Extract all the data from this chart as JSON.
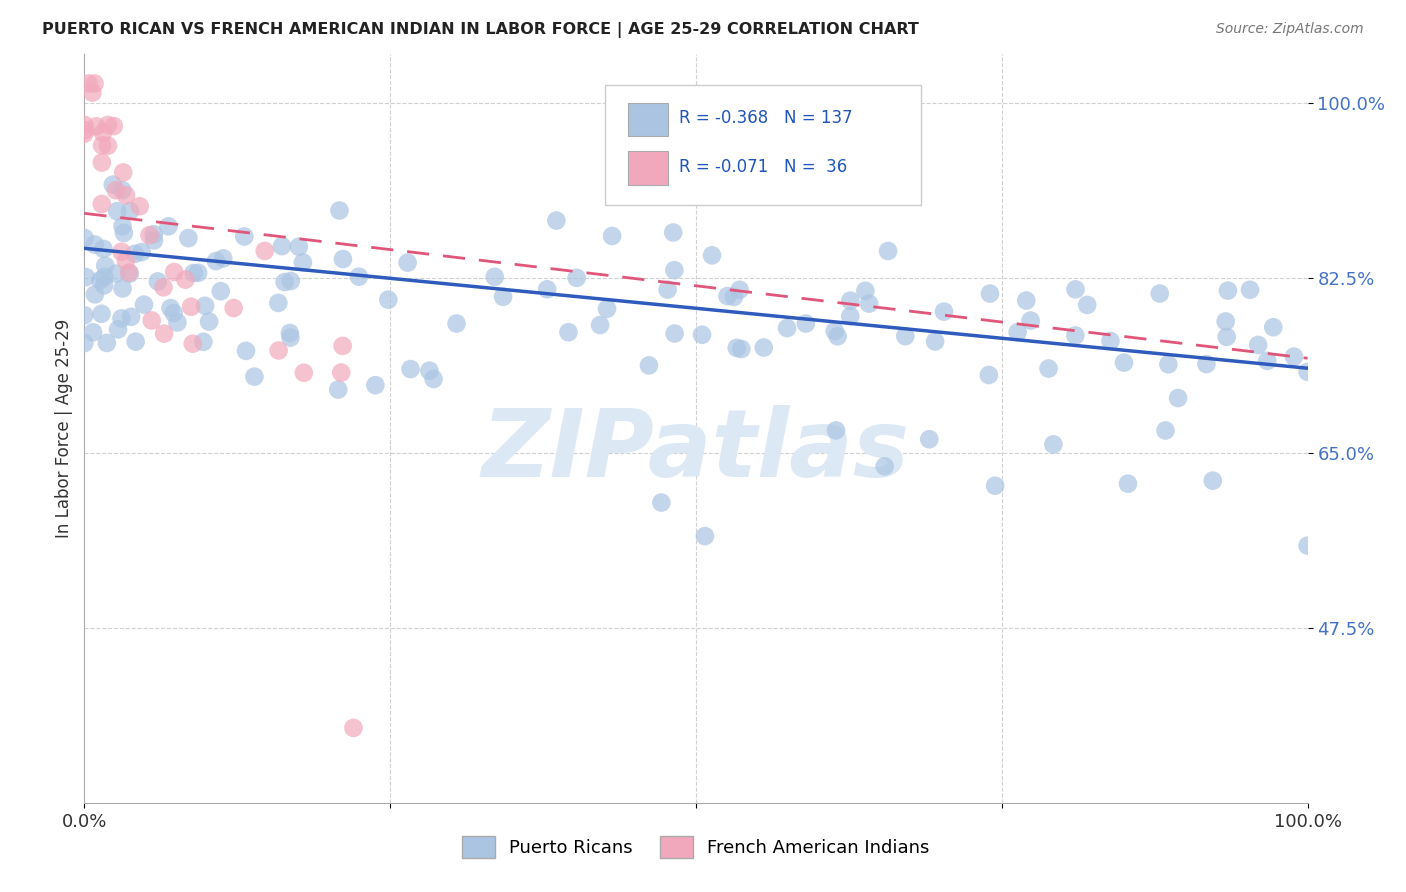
{
  "title": "PUERTO RICAN VS FRENCH AMERICAN INDIAN IN LABOR FORCE | AGE 25-29 CORRELATION CHART",
  "source_text": "Source: ZipAtlas.com",
  "ylabel": "In Labor Force | Age 25-29",
  "xlim": [
    0.0,
    1.0
  ],
  "ylim": [
    0.3,
    1.05
  ],
  "yticks": [
    0.475,
    0.65,
    0.825,
    1.0
  ],
  "ytick_labels": [
    "47.5%",
    "65.0%",
    "82.5%",
    "100.0%"
  ],
  "xticks": [
    0.0,
    0.25,
    0.5,
    0.75,
    1.0
  ],
  "xtick_labels": [
    "0.0%",
    "",
    "",
    "",
    "100.0%"
  ],
  "blue_color": "#aac4e2",
  "pink_color": "#f2a8bc",
  "blue_line_color": "#2f5bbd",
  "pink_line_color": "#e0567a",
  "legend_blue_text": "R = -0.368   N = 137",
  "legend_pink_text": "R = -0.071   N =  36",
  "watermark_text": "ZIPatlas",
  "ytick_color": "#4472c4",
  "xtick_color": "#333333",
  "blue_line_start_y": 0.855,
  "blue_line_end_y": 0.735,
  "pink_line_start_y": 0.89,
  "pink_line_end_y": 0.745,
  "blue_x": [
    0.005,
    0.007,
    0.008,
    0.01,
    0.012,
    0.013,
    0.014,
    0.015,
    0.016,
    0.017,
    0.018,
    0.019,
    0.02,
    0.021,
    0.022,
    0.023,
    0.024,
    0.025,
    0.027,
    0.03,
    0.032,
    0.035,
    0.037,
    0.04,
    0.042,
    0.045,
    0.048,
    0.05,
    0.053,
    0.055,
    0.058,
    0.06,
    0.063,
    0.065,
    0.068,
    0.07,
    0.075,
    0.08,
    0.085,
    0.09,
    0.095,
    0.1,
    0.105,
    0.11,
    0.115,
    0.12,
    0.125,
    0.13,
    0.135,
    0.14,
    0.15,
    0.155,
    0.16,
    0.165,
    0.17,
    0.18,
    0.19,
    0.2,
    0.21,
    0.22,
    0.23,
    0.24,
    0.25,
    0.26,
    0.27,
    0.28,
    0.3,
    0.32,
    0.34,
    0.36,
    0.38,
    0.4,
    0.42,
    0.44,
    0.46,
    0.48,
    0.5,
    0.52,
    0.54,
    0.56,
    0.58,
    0.6,
    0.62,
    0.64,
    0.66,
    0.68,
    0.7,
    0.72,
    0.74,
    0.76,
    0.78,
    0.8,
    0.82,
    0.84,
    0.86,
    0.88,
    0.9,
    0.92,
    0.94,
    0.96,
    0.98,
    1.0,
    0.38,
    0.4,
    0.42,
    0.44,
    0.46,
    0.48,
    0.5,
    0.52,
    0.54,
    0.57,
    0.6,
    0.63,
    0.66,
    0.7,
    0.74,
    0.78,
    0.82,
    0.86,
    0.9,
    0.93,
    0.95,
    0.97,
    0.99,
    0.46,
    0.5,
    0.55,
    0.6,
    0.65,
    0.7,
    0.75,
    0.8,
    0.85,
    0.9,
    0.95,
    1.0
  ],
  "blue_y": [
    0.845,
    0.848,
    0.842,
    0.85,
    0.843,
    0.847,
    0.84,
    0.844,
    0.838,
    0.842,
    0.846,
    0.839,
    0.843,
    0.837,
    0.841,
    0.835,
    0.839,
    0.843,
    0.836,
    0.841,
    0.835,
    0.838,
    0.833,
    0.837,
    0.831,
    0.835,
    0.829,
    0.833,
    0.827,
    0.83,
    0.825,
    0.829,
    0.823,
    0.827,
    0.821,
    0.826,
    0.82,
    0.824,
    0.818,
    0.822,
    0.817,
    0.821,
    0.815,
    0.819,
    0.813,
    0.817,
    0.812,
    0.816,
    0.81,
    0.814,
    0.808,
    0.812,
    0.806,
    0.81,
    0.804,
    0.808,
    0.802,
    0.806,
    0.8,
    0.804,
    0.798,
    0.802,
    0.797,
    0.8,
    0.795,
    0.799,
    0.793,
    0.796,
    0.791,
    0.793,
    0.789,
    0.791,
    0.786,
    0.789,
    0.784,
    0.787,
    0.782,
    0.785,
    0.78,
    0.782,
    0.778,
    0.781,
    0.776,
    0.779,
    0.774,
    0.777,
    0.772,
    0.775,
    0.77,
    0.772,
    0.768,
    0.77,
    0.766,
    0.768,
    0.764,
    0.766,
    0.762,
    0.764,
    0.76,
    0.762,
    0.758,
    0.755,
    0.87,
    0.82,
    0.88,
    0.81,
    0.87,
    0.8,
    0.86,
    0.79,
    0.84,
    0.78,
    0.83,
    0.82,
    0.81,
    0.8,
    0.79,
    0.78,
    0.77,
    0.76,
    0.75,
    0.74,
    0.73,
    0.72,
    0.71,
    0.68,
    0.55,
    0.69,
    0.67,
    0.66,
    0.65,
    0.64,
    0.63,
    0.62,
    0.61,
    0.6,
    0.59
  ],
  "pink_x": [
    0.005,
    0.007,
    0.008,
    0.01,
    0.011,
    0.012,
    0.013,
    0.014,
    0.015,
    0.017,
    0.018,
    0.02,
    0.022,
    0.023,
    0.025,
    0.027,
    0.03,
    0.032,
    0.035,
    0.038,
    0.04,
    0.045,
    0.05,
    0.055,
    0.06,
    0.07,
    0.08,
    0.09,
    0.1,
    0.12,
    0.14,
    0.16,
    0.18,
    0.2,
    0.22,
    0.22
  ],
  "pink_y": [
    1.0,
    1.0,
    1.0,
    1.0,
    1.0,
    1.0,
    1.0,
    1.0,
    1.0,
    0.96,
    0.955,
    0.95,
    0.945,
    0.94,
    0.92,
    0.91,
    0.9,
    0.89,
    0.87,
    0.86,
    0.84,
    0.86,
    0.84,
    0.83,
    0.82,
    0.82,
    0.81,
    0.81,
    0.8,
    0.8,
    0.79,
    0.79,
    0.78,
    0.78,
    0.77,
    0.38
  ]
}
